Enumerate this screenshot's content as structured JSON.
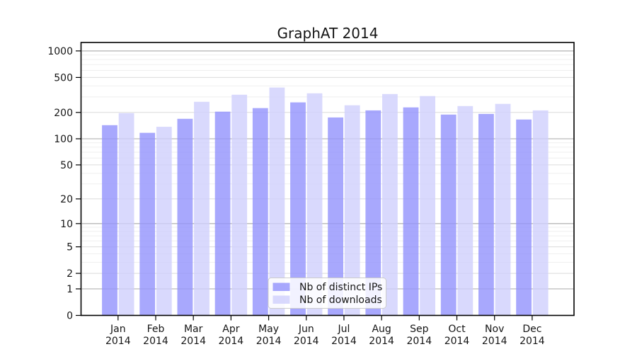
{
  "chart_data": {
    "type": "bar",
    "title": "GraphAT 2014",
    "x_year": "2014",
    "categories": [
      "Jan",
      "Feb",
      "Mar",
      "Apr",
      "May",
      "Jun",
      "Jul",
      "Aug",
      "Sep",
      "Oct",
      "Nov",
      "Dec"
    ],
    "series": [
      {
        "name": "Nb of distinct IPs",
        "color": "#9292fc",
        "values": [
          143,
          117,
          169,
          204,
          224,
          260,
          175,
          211,
          228,
          189,
          192,
          166
        ]
      },
      {
        "name": "Nb of downloads",
        "color": "#d0d0fc",
        "values": [
          196,
          137,
          264,
          318,
          384,
          330,
          241,
          324,
          307,
          236,
          250,
          211
        ]
      }
    ],
    "y_scale": "log1p",
    "y_ticks": [
      0,
      1,
      2,
      5,
      10,
      20,
      50,
      100,
      200,
      500,
      1000
    ],
    "ylim": [
      0,
      1250
    ],
    "grid": true,
    "legend_position": "bottom-center",
    "colors": {
      "grid_decade": "#a9a9a9",
      "grid_major": "#dbdbdb",
      "grid_minor": "#efefef",
      "spine": "#000000",
      "legend_bg": "#ffffff",
      "legend_border": "#cccccc"
    }
  }
}
